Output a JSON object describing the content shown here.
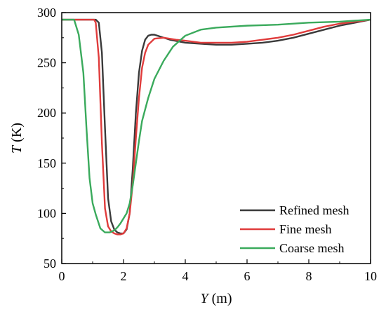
{
  "chart_data": {
    "type": "line",
    "title": "",
    "xlabel": {
      "var": "Y",
      "unit": " (m)"
    },
    "ylabel": {
      "var": "T",
      "unit": " (K)"
    },
    "xlim": [
      0,
      10
    ],
    "ylim": [
      50,
      300
    ],
    "xticks": [
      0,
      2,
      4,
      6,
      8,
      10
    ],
    "yticks": [
      50,
      100,
      150,
      200,
      250,
      300
    ],
    "grid": false,
    "legend_position": "bottom-right",
    "series": [
      {
        "name": "Refined mesh",
        "color": "#3a3a3a",
        "x": [
          0,
          1.1,
          1.2,
          1.3,
          1.4,
          1.5,
          1.6,
          1.7,
          1.8,
          1.9,
          2.0,
          2.1,
          2.2,
          2.3,
          2.4,
          2.5,
          2.6,
          2.7,
          2.8,
          2.9,
          3.0,
          3.2,
          3.5,
          4.0,
          4.5,
          5.0,
          5.5,
          6.0,
          6.5,
          7.0,
          7.5,
          8.0,
          8.5,
          9.0,
          9.5,
          10.0
        ],
        "y": [
          293,
          293,
          290,
          260,
          185,
          115,
          92,
          84,
          81,
          80,
          80,
          84,
          100,
          145,
          200,
          240,
          262,
          273,
          277,
          278,
          278,
          276,
          273,
          270,
          269,
          268,
          268,
          269,
          270,
          272,
          275,
          279,
          283,
          287,
          290,
          293
        ]
      },
      {
        "name": "Fine mesh",
        "color": "#e03c3c",
        "x": [
          0,
          1.05,
          1.1,
          1.2,
          1.3,
          1.4,
          1.5,
          1.6,
          1.7,
          1.8,
          1.9,
          2.0,
          2.1,
          2.2,
          2.3,
          2.4,
          2.5,
          2.6,
          2.7,
          2.8,
          3.0,
          3.3,
          3.7,
          4.0,
          4.5,
          5.0,
          5.5,
          6.0,
          6.5,
          7.0,
          7.5,
          8.0,
          8.5,
          9.0,
          9.5,
          10.0
        ],
        "y": [
          293,
          293,
          290,
          255,
          170,
          105,
          87,
          82,
          80,
          79,
          79,
          80,
          85,
          100,
          130,
          175,
          215,
          245,
          260,
          268,
          274,
          275,
          273,
          272,
          270,
          270,
          270,
          271,
          273,
          275,
          278,
          282,
          286,
          289,
          291,
          293
        ]
      },
      {
        "name": "Coarse mesh",
        "color": "#3aaa5c",
        "x": [
          0,
          0.4,
          0.55,
          0.7,
          0.8,
          0.9,
          1.0,
          1.1,
          1.25,
          1.4,
          1.55,
          1.7,
          1.8,
          1.9,
          2.0,
          2.1,
          2.2,
          2.3,
          2.4,
          2.5,
          2.6,
          2.8,
          3.0,
          3.3,
          3.6,
          4.0,
          4.5,
          5.0,
          6.0,
          7.0,
          8.0,
          9.0,
          10.0
        ],
        "y": [
          293,
          293,
          278,
          240,
          185,
          135,
          110,
          99,
          85,
          81,
          81,
          83,
          86,
          90,
          95,
          100,
          110,
          128,
          150,
          172,
          192,
          215,
          234,
          252,
          266,
          277,
          283,
          285,
          287,
          288,
          290,
          291,
          293
        ]
      }
    ]
  }
}
